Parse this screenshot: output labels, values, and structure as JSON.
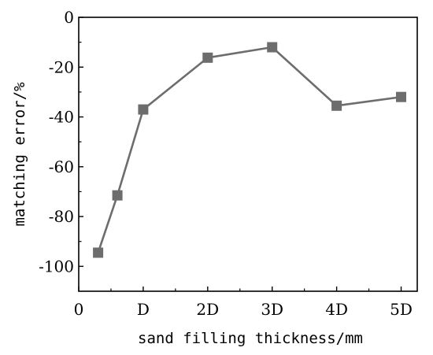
{
  "chart_data": {
    "type": "line",
    "xlabel": "sand filling thickness/mm",
    "ylabel": "matching error/%",
    "xlim": [
      0,
      5.25
    ],
    "ylim": [
      -110,
      0
    ],
    "x_ticks": [
      {
        "value": 0,
        "label": "0"
      },
      {
        "value": 1,
        "label": "D"
      },
      {
        "value": 2,
        "label": "2D"
      },
      {
        "value": 3,
        "label": "3D"
      },
      {
        "value": 4,
        "label": "4D"
      },
      {
        "value": 5,
        "label": "5D"
      }
    ],
    "y_ticks": [
      {
        "value": 0,
        "label": "0"
      },
      {
        "value": -20,
        "label": "-20"
      },
      {
        "value": -40,
        "label": "-40"
      },
      {
        "value": -60,
        "label": "-60"
      },
      {
        "value": -80,
        "label": "-80"
      },
      {
        "value": -100,
        "label": "-100"
      }
    ],
    "series": [
      {
        "marker": "square",
        "color": "#6d6d6d",
        "points": [
          {
            "x": 0.3,
            "y": -94.5
          },
          {
            "x": 0.6,
            "y": -71.5
          },
          {
            "x": 1.0,
            "y": -37.0
          },
          {
            "x": 2.0,
            "y": -16.2
          },
          {
            "x": 3.0,
            "y": -12.0
          },
          {
            "x": 4.0,
            "y": -35.5
          },
          {
            "x": 5.0,
            "y": -32.0
          }
        ]
      }
    ],
    "grid": false,
    "legend": "none"
  }
}
